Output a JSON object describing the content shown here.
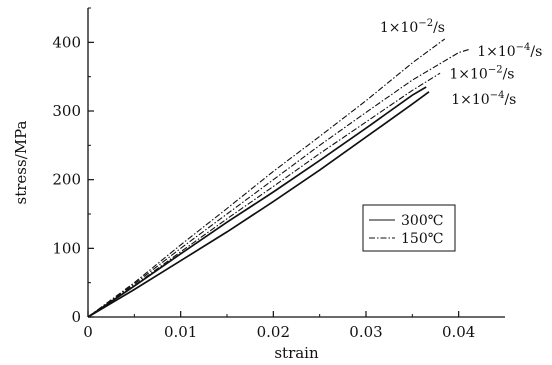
{
  "chart_data": {
    "type": "line",
    "xlabel": "strain",
    "ylabel": "stress/MPa",
    "xlim": [
      0,
      0.045
    ],
    "ylim": [
      0,
      450
    ],
    "x_ticks": [
      0,
      0.01,
      0.02,
      0.03,
      0.04
    ],
    "x_tick_labels": [
      "0",
      "0.01",
      "0.02",
      "0.03",
      "0.04"
    ],
    "y_ticks": [
      0,
      100,
      200,
      300,
      400
    ],
    "y_tick_labels": [
      "0",
      "100",
      "200",
      "300",
      "400"
    ],
    "grid": false,
    "legend": {
      "placement": "center-right",
      "entries": [
        {
          "label": "300℃",
          "style": "solid"
        },
        {
          "label": "150℃",
          "style": "dashdot"
        }
      ]
    },
    "series": [
      {
        "group": "150℃",
        "style": "dashdot",
        "x": [
          0,
          0.005,
          0.01,
          0.015,
          0.02,
          0.025,
          0.03,
          0.035,
          0.0385
        ],
        "y": [
          0,
          50,
          105,
          158,
          212,
          263,
          315,
          370,
          405
        ]
      },
      {
        "group": "150℃",
        "style": "dashdot",
        "x": [
          0,
          0.005,
          0.01,
          0.015,
          0.02,
          0.025,
          0.03,
          0.035,
          0.04,
          0.0412
        ],
        "y": [
          0,
          48,
          100,
          150,
          200,
          250,
          298,
          345,
          385,
          390
        ]
      },
      {
        "group": "150℃",
        "style": "dashdot",
        "x": [
          0,
          0.005,
          0.01,
          0.015,
          0.02,
          0.025,
          0.03,
          0.035,
          0.038
        ],
        "y": [
          0,
          46,
          95,
          143,
          190,
          238,
          284,
          330,
          355
        ]
      },
      {
        "group": "300℃",
        "style": "solid",
        "x": [
          0,
          0.005,
          0.01,
          0.015,
          0.02,
          0.025,
          0.03,
          0.035,
          0.0365
        ],
        "y": [
          0,
          45,
          92,
          138,
          182,
          228,
          275,
          323,
          335
        ]
      },
      {
        "group": "300℃",
        "style": "solid",
        "x": [
          0,
          0.005,
          0.01,
          0.015,
          0.02,
          0.025,
          0.03,
          0.035,
          0.0368
        ],
        "y": [
          0,
          40,
          82,
          124,
          168,
          214,
          262,
          310,
          328
        ]
      }
    ],
    "annotations": [
      {
        "base": "1×10",
        "exp": "−2",
        "unit": "/s",
        "x": 0.0315,
        "y": 415
      },
      {
        "base": "1×10",
        "exp": "−4",
        "unit": "/s",
        "x": 0.042,
        "y": 380
      },
      {
        "base": "1×10",
        "exp": "−2",
        "unit": "/s",
        "x": 0.039,
        "y": 347
      },
      {
        "base": "1×10",
        "exp": "−4",
        "unit": "/s",
        "x": 0.0392,
        "y": 310
      }
    ]
  }
}
